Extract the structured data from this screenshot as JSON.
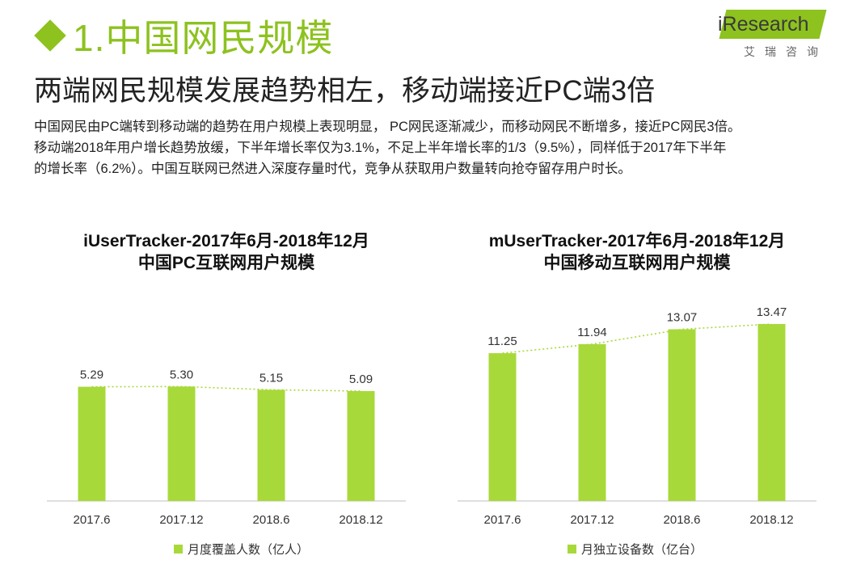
{
  "header": {
    "title": "1.中国网民规模",
    "subtitle": "两端网民规模发展趋势相左，移动端接近PC端3倍",
    "logo_main": "iResearch",
    "logo_sub": "艾瑞咨询"
  },
  "body": {
    "lines": [
      "中国网民由PC端转到移动端的趋势在用户规模上表现明显， PC网民逐渐减少，而移动网民不断增多，接近PC网民3倍。",
      "移动端2018年用户增长趋势放缓，下半年增长率仅为3.1%，不足上半年增长率的1/3（9.5%），同样低于2017年下半年",
      "的增长率（6.2%）。中国互联网已然进入深度存量时代，竞争从获取用户数量转向抢夺留存用户时长。"
    ]
  },
  "colors": {
    "accent": "#8dc21f",
    "bar": "#a8d93a",
    "trend": "#a8d93a"
  },
  "chart_data": [
    {
      "type": "bar",
      "title": "iUserTracker-2017年6月-2018年12月",
      "subtitle": "中国PC互联网用户规模",
      "categories": [
        "2017.6",
        "2017.12",
        "2018.6",
        "2018.12"
      ],
      "values": [
        5.29,
        5.3,
        5.15,
        5.09
      ],
      "value_labels": [
        "5.29",
        "5.30",
        "5.15",
        "5.09"
      ],
      "series_name": "月度覆盖人数（亿人）",
      "ylim": [
        0,
        9.43
      ],
      "trend_line": true,
      "grid": false,
      "legend": "bottom"
    },
    {
      "type": "bar",
      "title": "mUserTracker-2017年6月-2018年12月",
      "subtitle": "中国移动互联网用户规模",
      "categories": [
        "2017.6",
        "2017.12",
        "2018.6",
        "2018.12"
      ],
      "values": [
        11.25,
        11.94,
        13.07,
        13.47
      ],
      "value_labels": [
        "11.25",
        "11.94",
        "13.07",
        "13.47"
      ],
      "series_name": "月独立设备数（亿台）",
      "ylim": [
        0,
        15.5
      ],
      "trend_line": true,
      "grid": false,
      "legend": "bottom"
    }
  ]
}
